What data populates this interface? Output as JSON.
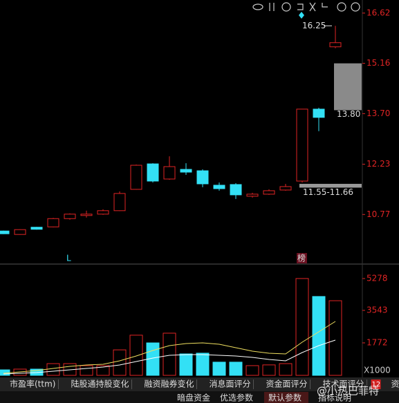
{
  "chart_data": [
    {
      "type": "candlestick",
      "up_color": "#e02424",
      "down_color": "#33e0f5",
      "open": [
        10.29,
        10.19,
        10.4,
        10.41,
        10.65,
        10.74,
        10.78,
        10.88,
        11.5,
        12.24,
        11.8,
        12.08,
        12.04,
        11.62,
        11.64,
        11.3,
        11.36,
        11.48,
        11.74,
        13.83,
        15.64
      ],
      "high": [
        10.3,
        10.34,
        10.41,
        10.67,
        10.8,
        10.88,
        10.92,
        11.44,
        12.22,
        12.26,
        12.46,
        12.26,
        12.08,
        11.7,
        11.68,
        11.4,
        11.5,
        11.66,
        13.83,
        13.87,
        16.25
      ],
      "low": [
        10.2,
        10.18,
        10.33,
        10.4,
        10.62,
        10.68,
        10.76,
        10.87,
        11.49,
        11.7,
        11.78,
        11.92,
        11.56,
        11.46,
        11.22,
        11.26,
        11.34,
        11.46,
        11.7,
        13.19,
        15.6
      ],
      "close": [
        10.21,
        10.33,
        10.34,
        10.65,
        10.78,
        10.78,
        10.88,
        11.38,
        12.2,
        11.74,
        12.16,
        12.0,
        11.66,
        11.52,
        11.34,
        11.36,
        11.46,
        11.58,
        13.83,
        13.59,
        15.76
      ],
      "ylim": [
        9.35,
        17.0
      ],
      "yticks": [
        16.62,
        15.16,
        {
          "value": 13.7,
          "label": "13.70"
        },
        12.23,
        10.77
      ],
      "high_marker": {
        "value": 16.25,
        "label": "16.25"
      },
      "range_box": {
        "top": 15.16,
        "bottom": 13.8,
        "label": "13.80"
      },
      "band": {
        "low": 11.55,
        "high": 11.66,
        "label": "11.55-11.66"
      },
      "markers": [
        "L",
        "榜"
      ]
    },
    {
      "type": "bar",
      "unit_label": "X1000",
      "values": [
        300,
        340,
        340,
        640,
        640,
        530,
        530,
        1390,
        2190,
        1770,
        2300,
        1170,
        1210,
        720,
        720,
        530,
        570,
        640,
        5280,
        4300,
        4070
      ],
      "series": [
        {
          "color": "#f0e060",
          "values": [
            113,
            189,
            264,
            377,
            490,
            565,
            603,
            792,
            1055,
            1357,
            1621,
            1734,
            1772,
            1696,
            1508,
            1319,
            1206,
            1168,
            1809,
            2375,
            2940
          ]
        },
        {
          "color": "#ffffff",
          "values": [
            75,
            113,
            151,
            226,
            302,
            377,
            452,
            565,
            754,
            942,
            1093,
            1131,
            1131,
            1093,
            1055,
            980,
            867,
            792,
            1244,
            1621,
            1922
          ]
        }
      ],
      "ylim": [
        0,
        5993
      ],
      "yticks": [
        5278,
        3543,
        1772
      ]
    }
  ],
  "tabs": [
    "市盈率(ttm)",
    "陆股通持股变化",
    "融资融券变化",
    "消息面评分",
    "资金面评分",
    "技术面评分",
    "资金抄底"
  ],
  "tab_badge": "12",
  "buttons": [
    "暗盘资金",
    "优选参数",
    "默认参数",
    "指标说明"
  ],
  "watermark": "@小热巴菲特"
}
